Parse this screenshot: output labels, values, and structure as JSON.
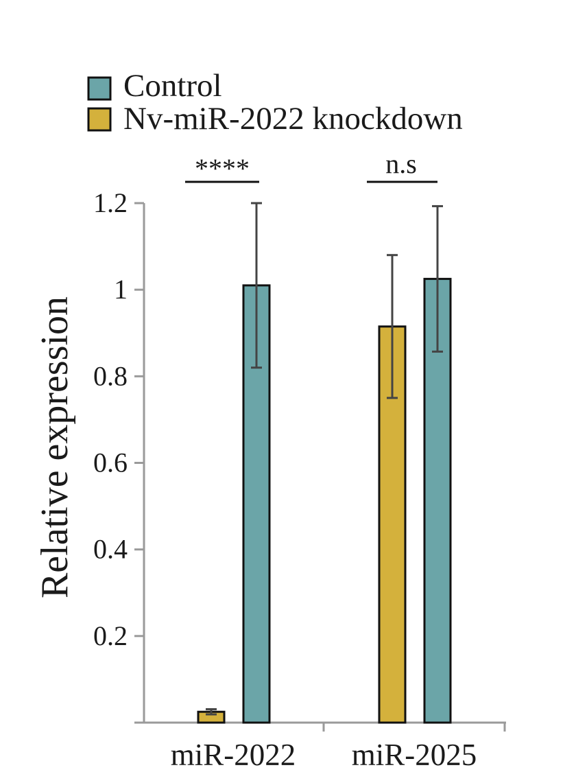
{
  "chart_data": {
    "type": "bar",
    "title": "",
    "xlabel": "",
    "ylabel": "Relative expression",
    "ylim": [
      0,
      1.2
    ],
    "yticks": [
      0.2,
      0.4,
      0.6,
      0.8,
      1,
      1.2
    ],
    "ytick_labels": [
      "0.2",
      "0.4",
      "0.6",
      "0.8",
      "1",
      "1.2"
    ],
    "categories": [
      "miR-2022",
      "miR-2025"
    ],
    "series": [
      {
        "name": "Nv-miR-2022 knockdown",
        "color": "#D4B13C",
        "values": [
          0.025,
          0.915
        ],
        "errors": [
          0.006,
          0.165
        ]
      },
      {
        "name": "Control",
        "color": "#6BA5A8",
        "values": [
          1.01,
          1.025
        ],
        "errors": [
          0.19,
          0.168
        ]
      }
    ],
    "legend": {
      "position": "top-left",
      "entries": [
        {
          "label": "Control",
          "color": "#6BA5A8"
        },
        {
          "label": "Nv-miR-2022 knockdown",
          "color": "#D4B13C"
        }
      ]
    },
    "significance": [
      "****",
      "n.s"
    ],
    "grid": false
  }
}
